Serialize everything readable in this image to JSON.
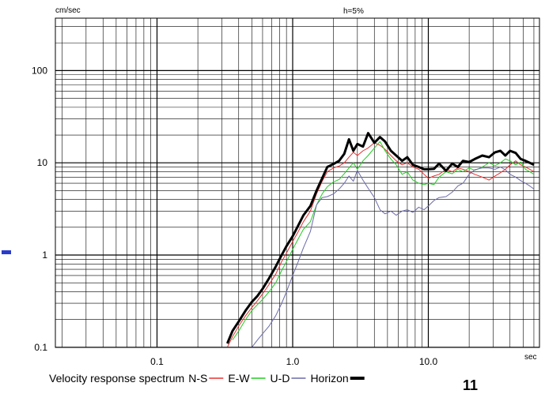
{
  "chart_data": {
    "type": "line",
    "title": "",
    "xlabel": "",
    "ylabel": "",
    "x_unit": "sec",
    "y_unit": "cm/sec",
    "annotation": "h=5%",
    "x_scale": "log",
    "y_scale": "log",
    "xlim": [
      0.02,
      60
    ],
    "ylim": [
      0.1,
      300
    ],
    "x_ticks": [
      0.1,
      1.0,
      10.0
    ],
    "x_tick_labels": [
      "0.1",
      "1.0",
      "10.0"
    ],
    "y_ticks": [
      0.1,
      1,
      10,
      100
    ],
    "y_tick_labels": [
      "0.1",
      "1",
      "10",
      "100"
    ],
    "grid": true,
    "legend_position": "bottom",
    "legend_title": "Velocity response spectrum",
    "series": [
      {
        "name": "N-S",
        "color": "#e83030",
        "stroke_width": 1,
        "x": [
          0.33,
          0.36,
          0.4,
          0.45,
          0.5,
          0.55,
          0.6,
          0.67,
          0.75,
          0.83,
          0.9,
          1.0,
          1.1,
          1.2,
          1.35,
          1.5,
          1.65,
          1.8,
          2.0,
          2.2,
          2.4,
          2.6,
          2.8,
          3.0,
          3.3,
          3.6,
          4.0,
          4.4,
          4.8,
          5.3,
          5.8,
          6.4,
          7.0,
          7.7,
          8.5,
          9.3,
          10.0,
          11.0,
          12.0,
          13.5,
          15.0,
          16.5,
          18.0,
          20.0,
          22.0,
          25.0,
          28.0,
          31.0,
          34.0,
          37.0,
          40.0,
          44.0,
          48.0,
          52.0,
          56.0,
          60.0
        ],
        "y": [
          0.1,
          0.13,
          0.17,
          0.22,
          0.27,
          0.32,
          0.38,
          0.48,
          0.62,
          0.85,
          1.05,
          1.4,
          1.8,
          2.3,
          3.0,
          4.6,
          6.3,
          8.0,
          8.8,
          9.2,
          10.0,
          11.5,
          13.0,
          12.0,
          13.5,
          14.5,
          16.5,
          15.5,
          14.0,
          12.0,
          10.5,
          9.5,
          10.0,
          9.0,
          8.5,
          7.5,
          6.8,
          7.2,
          7.5,
          8.5,
          8.0,
          8.8,
          8.5,
          8.0,
          7.5,
          7.0,
          6.5,
          7.2,
          7.8,
          8.5,
          9.5,
          10.5,
          9.5,
          9.0,
          8.5,
          8.0
        ]
      },
      {
        "name": "E-W",
        "color": "#22cc22",
        "stroke_width": 1,
        "x": [
          0.36,
          0.4,
          0.45,
          0.5,
          0.55,
          0.6,
          0.67,
          0.75,
          0.83,
          0.9,
          1.0,
          1.1,
          1.2,
          1.35,
          1.5,
          1.65,
          1.8,
          2.0,
          2.2,
          2.4,
          2.6,
          2.8,
          3.0,
          3.3,
          3.6,
          4.0,
          4.4,
          4.8,
          5.3,
          5.8,
          6.4,
          7.0,
          7.7,
          8.5,
          9.3,
          10.0,
          11.0,
          12.0,
          13.5,
          15.0,
          16.5,
          18.0,
          20.0,
          22.0,
          25.0,
          28.0,
          31.0,
          34.0,
          37.0,
          40.0,
          44.0,
          48.0,
          52.0,
          56.0,
          60.0
        ],
        "y": [
          0.12,
          0.15,
          0.2,
          0.25,
          0.29,
          0.33,
          0.4,
          0.5,
          0.68,
          0.85,
          1.15,
          1.5,
          1.9,
          2.3,
          3.5,
          4.6,
          5.5,
          6.2,
          6.6,
          7.6,
          8.8,
          10.0,
          8.5,
          10.5,
          12.0,
          14.5,
          17.0,
          13.5,
          11.0,
          9.5,
          7.5,
          8.0,
          6.5,
          6.0,
          5.8,
          6.0,
          5.8,
          7.0,
          8.0,
          7.6,
          8.5,
          8.0,
          8.8,
          8.3,
          9.0,
          10.0,
          9.3,
          10.0,
          11.0,
          10.5,
          9.5,
          10.2,
          8.5,
          8.0,
          7.5
        ]
      },
      {
        "name": "U-D",
        "color": "#6a6aaa",
        "stroke_width": 1,
        "x": [
          0.5,
          0.55,
          0.6,
          0.67,
          0.75,
          0.83,
          0.9,
          1.0,
          1.1,
          1.2,
          1.35,
          1.5,
          1.65,
          1.8,
          2.0,
          2.2,
          2.4,
          2.6,
          2.8,
          3.0,
          3.3,
          3.6,
          4.0,
          4.4,
          4.8,
          5.3,
          5.8,
          6.4,
          7.0,
          7.7,
          8.5,
          9.3,
          10.0,
          11.0,
          12.0,
          13.5,
          15.0,
          16.5,
          18.0,
          20.0,
          22.0,
          25.0,
          28.0,
          31.0,
          34.0,
          37.0,
          40.0,
          44.0,
          48.0,
          52.0,
          56.0,
          60.0
        ],
        "y": [
          0.1,
          0.12,
          0.14,
          0.17,
          0.22,
          0.3,
          0.4,
          0.6,
          0.85,
          1.2,
          1.8,
          3.5,
          4.2,
          4.3,
          4.6,
          5.2,
          6.0,
          7.2,
          6.3,
          8.3,
          6.5,
          5.3,
          4.2,
          3.1,
          2.8,
          3.0,
          2.7,
          3.0,
          3.1,
          2.9,
          3.3,
          3.1,
          3.4,
          3.9,
          4.2,
          4.3,
          4.8,
          5.6,
          6.0,
          7.5,
          8.4,
          8.8,
          8.8,
          8.5,
          9.0,
          8.4,
          7.5,
          7.0,
          6.4,
          6.0,
          5.6,
          5.2
        ]
      },
      {
        "name": "Horizon",
        "color": "#000000",
        "stroke_width": 3,
        "x": [
          0.33,
          0.36,
          0.4,
          0.45,
          0.5,
          0.55,
          0.6,
          0.67,
          0.75,
          0.83,
          0.9,
          1.0,
          1.1,
          1.2,
          1.35,
          1.5,
          1.65,
          1.8,
          2.0,
          2.2,
          2.4,
          2.6,
          2.8,
          3.0,
          3.3,
          3.6,
          4.0,
          4.4,
          4.8,
          5.3,
          5.8,
          6.4,
          7.0,
          7.7,
          8.5,
          9.3,
          10.0,
          11.0,
          12.0,
          13.5,
          15.0,
          16.5,
          18.0,
          20.0,
          22.0,
          25.0,
          28.0,
          31.0,
          34.0,
          37.0,
          40.0,
          44.0,
          48.0,
          52.0,
          56.0,
          60.0
        ],
        "y": [
          0.11,
          0.15,
          0.19,
          0.25,
          0.31,
          0.36,
          0.43,
          0.56,
          0.75,
          1.0,
          1.25,
          1.6,
          2.1,
          2.7,
          3.4,
          5.0,
          6.8,
          9.0,
          9.7,
          10.5,
          12.5,
          18.0,
          13.5,
          16.0,
          15.0,
          21.0,
          16.5,
          19.0,
          17.0,
          13.5,
          12.0,
          10.5,
          11.5,
          9.5,
          9.0,
          8.5,
          8.5,
          8.6,
          9.8,
          8.2,
          9.8,
          9.0,
          10.5,
          10.2,
          11.0,
          12.0,
          11.5,
          13.0,
          13.5,
          12.0,
          13.5,
          12.8,
          11.0,
          10.5,
          10.0,
          9.5
        ]
      }
    ]
  },
  "decorations": {
    "page_number": "11",
    "left_marker_color": "#2a3ccc"
  }
}
